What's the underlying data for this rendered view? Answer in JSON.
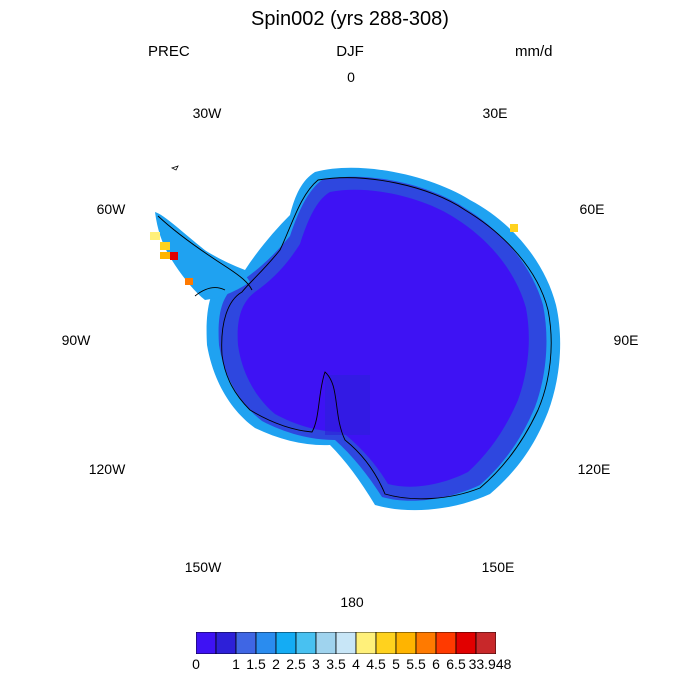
{
  "plot": {
    "title": "Spin002 (yrs 288-308)",
    "variable": "PREC",
    "season": "DJF",
    "units": "mm/d"
  },
  "longitude_labels": [
    {
      "id": "lon-0",
      "label": "0"
    },
    {
      "id": "lon-30e",
      "label": "30E"
    },
    {
      "id": "lon-60e",
      "label": "60E"
    },
    {
      "id": "lon-90e",
      "label": "90E"
    },
    {
      "id": "lon-120e",
      "label": "120E"
    },
    {
      "id": "lon-150e",
      "label": "150E"
    },
    {
      "id": "lon-180",
      "label": "180"
    },
    {
      "id": "lon-150w",
      "label": "150W"
    },
    {
      "id": "lon-120w",
      "label": "120W"
    },
    {
      "id": "lon-90w",
      "label": "90W"
    },
    {
      "id": "lon-60w",
      "label": "60W"
    },
    {
      "id": "lon-30w",
      "label": "30W"
    }
  ],
  "colorbar": {
    "colors": [
      "#3e12f4",
      "#2d20d8",
      "#3f66e4",
      "#2a8cef",
      "#14acf4",
      "#48c1f1",
      "#9fd3ee",
      "#c8e6f7",
      "#fff07a",
      "#ffd21e",
      "#ffb400",
      "#ff7a00",
      "#ff3a00",
      "#e10000",
      "#c8282a"
    ],
    "labels": [
      "0",
      "1",
      "1.5",
      "2",
      "2.5",
      "3",
      "3.5",
      "4",
      "4.5",
      "5",
      "5.5",
      "6",
      "6.5",
      "33.948"
    ]
  },
  "colors": {
    "land_fill": "#3e12f4",
    "coast_band": "#2e47df",
    "outer_band": "#1fa2f1",
    "coastline": "#000000"
  }
}
